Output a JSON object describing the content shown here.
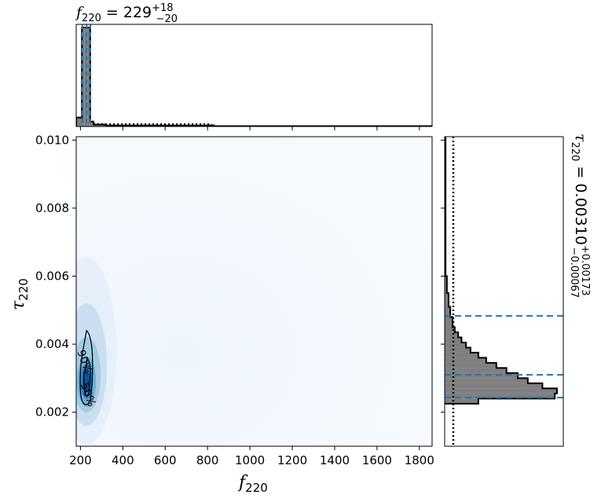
{
  "chart_data": [
    {
      "type": "histogram",
      "panel": "top-marginal",
      "title_symbol": "f",
      "title_subscript": "220",
      "title_equals": " = 229",
      "title_err_plus": "+18",
      "title_err_minus": "−20",
      "x_range": [
        180,
        1860
      ],
      "bins": [
        {
          "x0": 180,
          "x1": 207,
          "density": 0.09
        },
        {
          "x0": 207,
          "x1": 220,
          "density": 1.0
        },
        {
          "x0": 220,
          "x1": 233,
          "density": 1.0
        },
        {
          "x0": 233,
          "x1": 246,
          "density": 1.0
        },
        {
          "x0": 246,
          "x1": 262,
          "density": 0.05
        },
        {
          "x0": 262,
          "x1": 320,
          "density": 0.02
        },
        {
          "x0": 320,
          "x1": 800,
          "density": 0.01
        },
        {
          "x0": 800,
          "x1": 830,
          "density": 0.012
        },
        {
          "x0": 830,
          "x1": 1860,
          "density": 0.004
        }
      ],
      "median": 229,
      "lower": 209,
      "upper": 247,
      "prior_line": true,
      "median_color": "#1f77b4",
      "fill_color": "#7f7f7f",
      "edge_color": "#000000"
    },
    {
      "type": "heatmap",
      "panel": "joint",
      "xlabel_symbol": "f",
      "xlabel_subscript": "220",
      "ylabel_symbol": "τ",
      "ylabel_subscript": "220",
      "xlim": [
        180,
        1860
      ],
      "ylim": [
        0.001,
        0.0101
      ],
      "xticks": [
        200,
        400,
        600,
        800,
        1000,
        1200,
        1400,
        1600,
        1800
      ],
      "yticks": [
        0.002,
        0.004,
        0.006,
        0.008,
        0.01
      ],
      "ytick_labels": [
        "0.002",
        "0.004",
        "0.006",
        "0.008",
        "0.010"
      ],
      "colormap": "Blues",
      "density_peak": {
        "x": 229,
        "y": 0.0029
      },
      "contours": [
        {
          "label": "90%",
          "center": [
            229,
            0.0032
          ],
          "x_halfwidth": 30,
          "y_low": 0.00225,
          "y_high": 0.0044
        },
        {
          "label": "50%",
          "center": [
            232,
            0.0029
          ],
          "x_halfwidth": 16,
          "y_low": 0.0025,
          "y_high": 0.0036
        }
      ]
    },
    {
      "type": "histogram",
      "panel": "right-marginal",
      "orientation": "horizontal",
      "title_symbol": "τ",
      "title_subscript": "220",
      "title_equals": " = 0.00310",
      "title_err_plus": "+0.00173",
      "title_err_minus": "−0.00067",
      "y_range": [
        0.001,
        0.0101
      ],
      "bins": [
        {
          "y0": 0.00225,
          "y1": 0.0024,
          "density": 0.3
        },
        {
          "y0": 0.0024,
          "y1": 0.00255,
          "density": 0.98
        },
        {
          "y0": 0.00255,
          "y1": 0.0027,
          "density": 1.0
        },
        {
          "y0": 0.0027,
          "y1": 0.00285,
          "density": 0.87
        },
        {
          "y0": 0.00285,
          "y1": 0.003,
          "density": 0.74
        },
        {
          "y0": 0.003,
          "y1": 0.00315,
          "density": 0.65
        },
        {
          "y0": 0.00315,
          "y1": 0.0033,
          "density": 0.55
        },
        {
          "y0": 0.0033,
          "y1": 0.00345,
          "density": 0.46
        },
        {
          "y0": 0.00345,
          "y1": 0.0036,
          "density": 0.37
        },
        {
          "y0": 0.0036,
          "y1": 0.00375,
          "density": 0.3
        },
        {
          "y0": 0.00375,
          "y1": 0.0039,
          "density": 0.23
        },
        {
          "y0": 0.0039,
          "y1": 0.00405,
          "density": 0.19
        },
        {
          "y0": 0.00405,
          "y1": 0.0042,
          "density": 0.15
        },
        {
          "y0": 0.0042,
          "y1": 0.00435,
          "density": 0.12
        },
        {
          "y0": 0.00435,
          "y1": 0.0045,
          "density": 0.09
        },
        {
          "y0": 0.0045,
          "y1": 0.0048,
          "density": 0.07
        },
        {
          "y0": 0.0048,
          "y1": 0.0051,
          "density": 0.05
        },
        {
          "y0": 0.0051,
          "y1": 0.0055,
          "density": 0.035
        },
        {
          "y0": 0.0055,
          "y1": 0.006,
          "density": 0.02
        },
        {
          "y0": 0.006,
          "y1": 0.0101,
          "density": 0.008
        }
      ],
      "median": 0.0031,
      "lower": 0.00243,
      "upper": 0.00483,
      "prior_line": true,
      "median_color": "#1f77b4",
      "fill_color": "#7f7f7f",
      "edge_color": "#000000"
    }
  ]
}
